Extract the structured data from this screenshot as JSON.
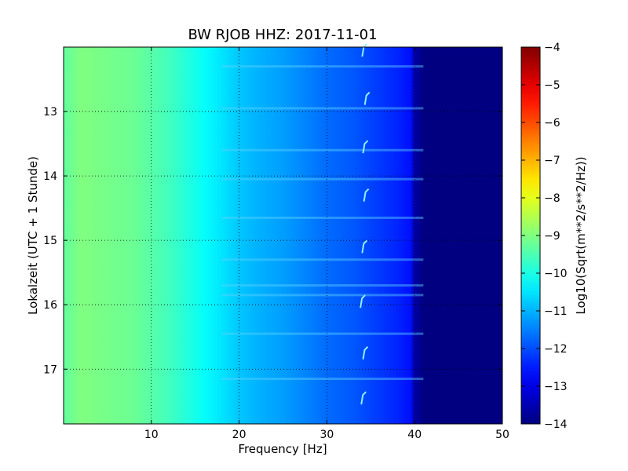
{
  "chart_data": {
    "type": "heatmap",
    "title": "BW RJOB HHZ: 2017-11-01",
    "xlabel": "Frequency [Hz]",
    "ylabel": "Lokalzeit (UTC + 1 Stunde)",
    "xlim": [
      0,
      50
    ],
    "ylim": [
      17.85,
      12.0
    ],
    "y_inverted": true,
    "x_ticks": [
      10,
      20,
      30,
      40,
      50
    ],
    "y_ticks": [
      13,
      14,
      15,
      16,
      17
    ],
    "grid": true,
    "colormap": "jet",
    "colorbar": {
      "label": "Log10(Sqrt(m**2/s**2/Hz))",
      "range": [
        -14,
        -4
      ],
      "ticks": [
        -4,
        -5,
        -6,
        -7,
        -8,
        -9,
        -10,
        -11,
        -12,
        -13,
        -14
      ]
    },
    "spectral_profile": {
      "frequency_hz": [
        0,
        2,
        5,
        8,
        10,
        12,
        14,
        16,
        18,
        20,
        22,
        25,
        28,
        30,
        33,
        35,
        38,
        39.5,
        40,
        41,
        45,
        50
      ],
      "log10_amplitude": [
        -9.3,
        -9.0,
        -9.1,
        -9.2,
        -9.4,
        -9.6,
        -9.9,
        -10.2,
        -10.5,
        -10.8,
        -11.0,
        -11.2,
        -11.5,
        -11.7,
        -11.9,
        -12.1,
        -12.4,
        -12.6,
        -13.6,
        -14.0,
        -14.0,
        -14.0
      ]
    },
    "event_marks": {
      "frequency_hz": [
        34.2,
        34.5,
        34.3,
        34.4,
        34.2,
        34.0,
        34.3,
        34.1
      ],
      "time_hours": [
        12.05,
        12.8,
        13.55,
        14.3,
        15.1,
        15.95,
        16.75,
        17.45
      ]
    },
    "bright_bands_time_hours": [
      12.3,
      12.95,
      13.6,
      14.05,
      14.65,
      15.3,
      15.7,
      15.85,
      16.45,
      17.15
    ]
  },
  "colors": {
    "background": "#ffffff",
    "frame": "#000000",
    "grid": "#000000"
  }
}
